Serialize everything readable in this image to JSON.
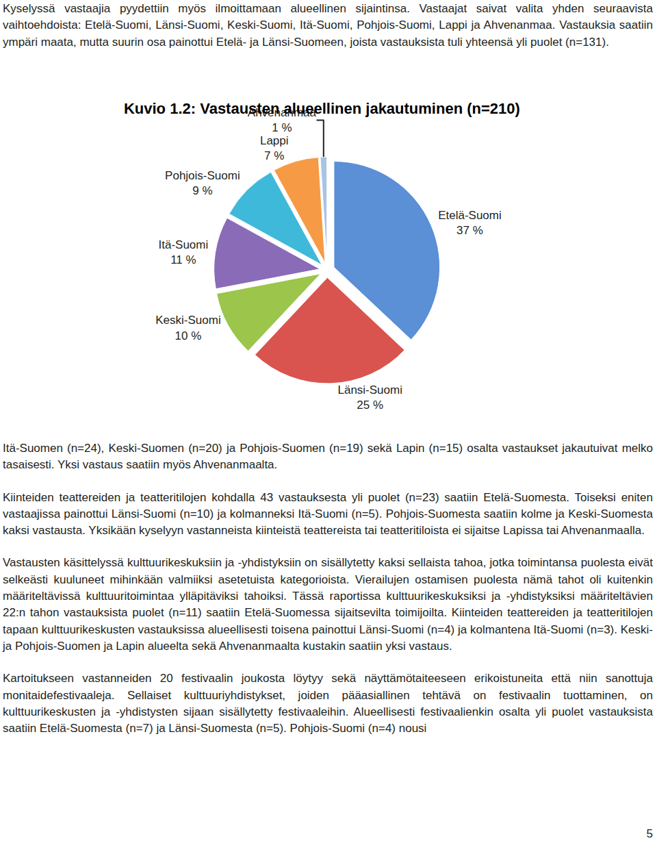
{
  "paragraphs_before": [
    "Kyselyssä vastaajia pyydettiin myös ilmoittamaan alueellinen sijaintinsa. Vastaajat saivat valita yhden seuraavista vaihtoehdoista: Etelä-Suomi, Länsi-Suomi, Keski-Suomi, Itä-Suomi, Pohjois-Suomi, Lappi ja Ahvenanmaa. Vastauksia saatiin ympäri maata,  mutta suurin osa painottui Etelä- ja Länsi-Suomeen, joista vastauksista tuli yhteensä yli puolet (n=131)."
  ],
  "chart_data": {
    "type": "pie",
    "title": "Kuvio 1.2: Vastausten alueellinen jakautuminen (n=210)",
    "categories": [
      "Etelä-Suomi",
      "Länsi-Suomi",
      "Keski-Suomi",
      "Itä-Suomi",
      "Pohjois-Suomi",
      "Lappi",
      "Ahvenanmaa"
    ],
    "values": [
      37,
      25,
      10,
      11,
      9,
      7,
      1
    ],
    "value_labels": [
      "37 %",
      "25 %",
      "10 %",
      "11 %",
      "9 %",
      "7 %",
      "1 %"
    ],
    "colors": [
      "#5b8fd6",
      "#d9544f",
      "#9cc54b",
      "#8a6bb8",
      "#3fb9da",
      "#f79a45",
      "#a9c3e6"
    ],
    "data_labels": true
  },
  "paragraphs_after": [
    "Itä-Suomen (n=24), Keski-Suomen (n=20) ja Pohjois-Suomen (n=19) sekä Lapin (n=15) osalta vastaukset jakautuivat melko tasaisesti. Yksi vastaus saatiin myös Ahvenanmaalta.",
    "Kiinteiden teattereiden ja teatteritilojen kohdalla 43 vastauksesta yli puolet (n=23) saatiin Etelä-Suomesta. Toiseksi eniten vastaajissa painottui Länsi-Suomi (n=10) ja kolmanneksi Itä-Suomi (n=5). Pohjois-Suomesta saatiin kolme ja Keski-Suomesta kaksi vastausta. Yksikään kyselyyn vastanneista kiinteistä teattereista tai teatteritiloista ei sijaitse Lapissa tai Ahvenanmaalla.",
    "Vastausten käsittelyssä kulttuurikeskuksiin ja -yhdistyksiin on sisällytetty kaksi sellaista tahoa, jotka toimintansa puolesta eivät selkeästi kuuluneet mihinkään valmiiksi asetetuista kategorioista. Vierailujen ostamisen puolesta nämä tahot oli kuitenkin määriteltävissä kulttuuritoimintaa ylläpitäviksi tahoiksi. Tässä raportissa kulttuurikeskuksiksi ja -yhdistyksiksi määriteltävien 22:n tahon vastauksista puolet (n=11) saatiin Etelä-Suomessa sijaitsevilta toimijoilta. Kiinteiden teattereiden ja teatteritilojen tapaan kulttuurikeskusten vastauksissa alueellisesti toisena painottui Länsi-Suomi (n=4) ja kolmantena Itä-Suomi (n=3). Keski- ja Pohjois-Suomen ja Lapin alueelta sekä Ahvenanmaalta kustakin saatiin yksi vastaus.",
    "Kartoitukseen vastanneiden 20 festivaalin joukosta löytyy sekä näyttämötaiteeseen erikoistuneita että niin sanottuja monitaidefestivaaleja. Sellaiset kulttuuriyhdistykset, joiden pääasiallinen tehtävä on festivaalin tuottaminen, on kulttuurikeskusten ja -yhdistysten sijaan sisällytetty festivaaleihin. Alueellisesti festivaalienkin osalta yli puolet vastauksista saatiin Etelä-Suomesta (n=7) ja Länsi-Suomesta (n=5). Pohjois-Suomi (n=4) nousi"
  ],
  "page_number": "5"
}
